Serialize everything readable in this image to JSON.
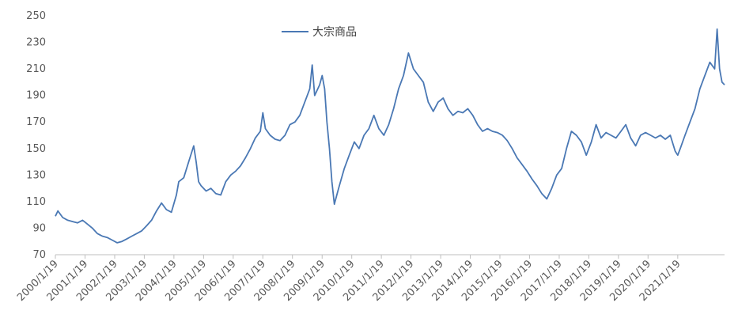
{
  "chart_data": {
    "type": "line",
    "title": "",
    "xlabel": "",
    "ylabel": "",
    "ylim": [
      70,
      250
    ],
    "yticks": [
      70,
      90,
      110,
      130,
      150,
      170,
      190,
      210,
      230,
      250
    ],
    "x_tick_labels": [
      "2000/1/19",
      "2001/1/19",
      "2002/1/19",
      "2003/1/19",
      "2004/1/19",
      "2005/1/19",
      "2006/1/19",
      "2007/1/19",
      "2008/1/19",
      "2009/1/19",
      "2010/1/19",
      "2011/1/19",
      "2012/1/19",
      "2013/1/19",
      "2014/1/19",
      "2015/1/19",
      "2016/1/19",
      "2017/1/19",
      "2018/1/19",
      "2019/1/19",
      "2020/1/19",
      "2021/1/19"
    ],
    "grid": false,
    "legend_position": "top-center",
    "series": [
      {
        "name": "大宗商品",
        "color": "#4a78b4",
        "points": [
          [
            "2000/1/19",
            99
          ],
          [
            "2000/2/19",
            103
          ],
          [
            "2000/4/19",
            98
          ],
          [
            "2000/6/19",
            96
          ],
          [
            "2000/8/19",
            95
          ],
          [
            "2000/10/19",
            94
          ],
          [
            "2000/12/19",
            96
          ],
          [
            "2001/2/19",
            93
          ],
          [
            "2001/4/19",
            90
          ],
          [
            "2001/6/19",
            86
          ],
          [
            "2001/8/19",
            84
          ],
          [
            "2001/10/19",
            83
          ],
          [
            "2001/12/19",
            81
          ],
          [
            "2002/2/19",
            79
          ],
          [
            "2002/4/19",
            80
          ],
          [
            "2002/6/19",
            82
          ],
          [
            "2002/8/19",
            84
          ],
          [
            "2002/10/19",
            86
          ],
          [
            "2002/12/19",
            88
          ],
          [
            "2003/2/19",
            92
          ],
          [
            "2003/4/19",
            96
          ],
          [
            "2003/6/19",
            103
          ],
          [
            "2003/8/19",
            109
          ],
          [
            "2003/10/19",
            104
          ],
          [
            "2003/12/19",
            102
          ],
          [
            "2004/2/19",
            115
          ],
          [
            "2004/3/19",
            125
          ],
          [
            "2004/5/19",
            128
          ],
          [
            "2004/7/19",
            140
          ],
          [
            "2004/9/19",
            152
          ],
          [
            "2004/10/19",
            140
          ],
          [
            "2004/11/19",
            125
          ],
          [
            "2004/12/19",
            122
          ],
          [
            "2005/2/19",
            118
          ],
          [
            "2005/4/19",
            120
          ],
          [
            "2005/6/19",
            116
          ],
          [
            "2005/8/19",
            115
          ],
          [
            "2005/10/19",
            125
          ],
          [
            "2005/12/19",
            130
          ],
          [
            "2006/2/19",
            133
          ],
          [
            "2006/4/19",
            137
          ],
          [
            "2006/6/19",
            143
          ],
          [
            "2006/8/19",
            150
          ],
          [
            "2006/10/19",
            158
          ],
          [
            "2006/12/19",
            163
          ],
          [
            "2007/1/19",
            177
          ],
          [
            "2007/2/19",
            165
          ],
          [
            "2007/4/19",
            160
          ],
          [
            "2007/6/19",
            157
          ],
          [
            "2007/8/19",
            156
          ],
          [
            "2007/10/19",
            160
          ],
          [
            "2007/12/19",
            168
          ],
          [
            "2008/2/19",
            170
          ],
          [
            "2008/4/19",
            175
          ],
          [
            "2008/6/19",
            185
          ],
          [
            "2008/8/19",
            195
          ],
          [
            "2008/9/19",
            213
          ],
          [
            "2008/10/19",
            190
          ],
          [
            "2008/12/19",
            198
          ],
          [
            "2009/1/19",
            205
          ],
          [
            "2009/2/19",
            195
          ],
          [
            "2009/3/19",
            170
          ],
          [
            "2009/4/19",
            150
          ],
          [
            "2009/5/19",
            125
          ],
          [
            "2009/6/19",
            108
          ],
          [
            "2009/7/19",
            115
          ],
          [
            "2009/8/19",
            122
          ],
          [
            "2009/10/19",
            135
          ],
          [
            "2009/12/19",
            145
          ],
          [
            "2010/2/19",
            155
          ],
          [
            "2010/4/19",
            150
          ],
          [
            "2010/6/19",
            160
          ],
          [
            "2010/8/19",
            165
          ],
          [
            "2010/10/19",
            175
          ],
          [
            "2010/12/19",
            165
          ],
          [
            "2011/2/19",
            160
          ],
          [
            "2011/4/19",
            168
          ],
          [
            "2011/6/19",
            180
          ],
          [
            "2011/8/19",
            195
          ],
          [
            "2011/10/19",
            205
          ],
          [
            "2011/12/19",
            222
          ],
          [
            "2012/2/19",
            210
          ],
          [
            "2012/4/19",
            205
          ],
          [
            "2012/6/19",
            200
          ],
          [
            "2012/8/19",
            185
          ],
          [
            "2012/10/19",
            178
          ],
          [
            "2012/12/19",
            185
          ],
          [
            "2013/2/19",
            188
          ],
          [
            "2013/4/19",
            180
          ],
          [
            "2013/6/19",
            175
          ],
          [
            "2013/8/19",
            178
          ],
          [
            "2013/10/19",
            177
          ],
          [
            "2013/12/19",
            180
          ],
          [
            "2014/2/19",
            175
          ],
          [
            "2014/4/19",
            168
          ],
          [
            "2014/6/19",
            163
          ],
          [
            "2014/8/19",
            165
          ],
          [
            "2014/10/19",
            163
          ],
          [
            "2014/12/19",
            162
          ],
          [
            "2015/2/19",
            160
          ],
          [
            "2015/4/19",
            156
          ],
          [
            "2015/6/19",
            150
          ],
          [
            "2015/8/19",
            143
          ],
          [
            "2015/10/19",
            138
          ],
          [
            "2015/12/19",
            133
          ],
          [
            "2016/2/19",
            127
          ],
          [
            "2016/4/19",
            122
          ],
          [
            "2016/6/19",
            116
          ],
          [
            "2016/8/19",
            112
          ],
          [
            "2016/10/19",
            120
          ],
          [
            "2016/12/19",
            130
          ],
          [
            "2017/2/19",
            135
          ],
          [
            "2017/4/19",
            150
          ],
          [
            "2017/6/19",
            163
          ],
          [
            "2017/8/19",
            160
          ],
          [
            "2017/10/19",
            155
          ],
          [
            "2017/12/19",
            145
          ],
          [
            "2018/2/19",
            155
          ],
          [
            "2018/4/19",
            168
          ],
          [
            "2018/6/19",
            158
          ],
          [
            "2018/8/19",
            162
          ],
          [
            "2018/10/19",
            160
          ],
          [
            "2018/12/19",
            158
          ],
          [
            "2019/2/19",
            163
          ],
          [
            "2019/4/19",
            168
          ],
          [
            "2019/6/19",
            158
          ],
          [
            "2019/8/19",
            152
          ],
          [
            "2019/10/19",
            160
          ],
          [
            "2019/12/19",
            162
          ],
          [
            "2020/2/19",
            160
          ],
          [
            "2020/4/19",
            158
          ],
          [
            "2020/6/19",
            160
          ],
          [
            "2020/8/19",
            157
          ],
          [
            "2020/10/19",
            160
          ],
          [
            "2020/12/19",
            148
          ],
          [
            "2021/1/19",
            145
          ],
          [
            "2021/2/19",
            150
          ],
          [
            "2021/4/19",
            160
          ],
          [
            "2021/6/19",
            170
          ],
          [
            "2021/8/19",
            180
          ],
          [
            "2021/10/19",
            195
          ],
          [
            "2021/12/19",
            205
          ],
          [
            "2022/2/19",
            215
          ],
          [
            "2022/4/19",
            210
          ],
          [
            "2022/5/19",
            240
          ],
          [
            "2022/6/19",
            210
          ],
          [
            "2022/7/19",
            200
          ],
          [
            "2022/8/19",
            198
          ]
        ]
      }
    ]
  }
}
